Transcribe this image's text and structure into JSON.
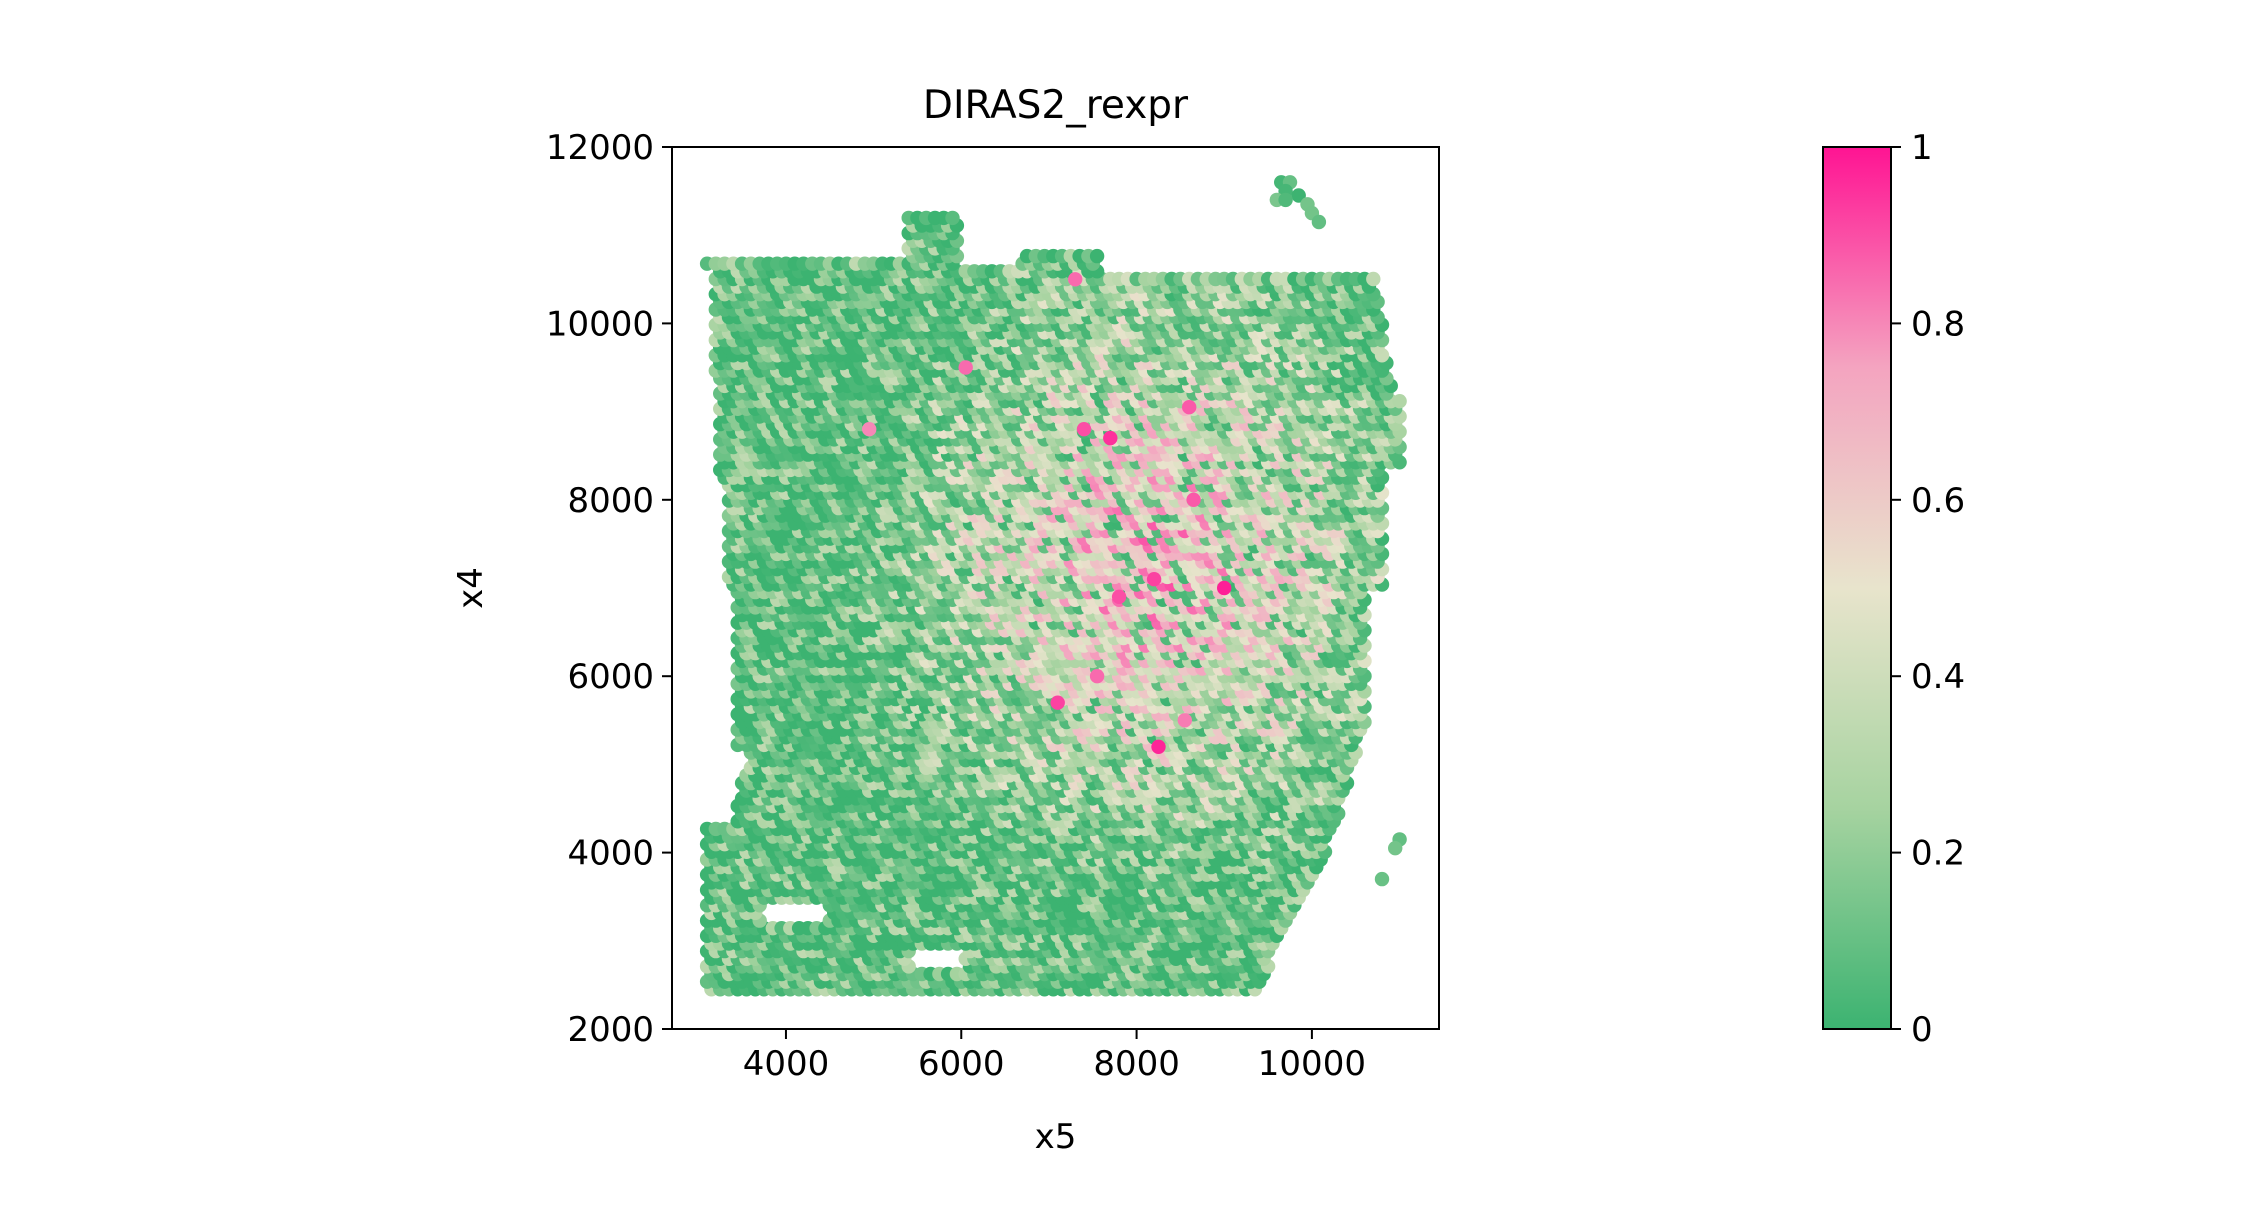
{
  "chart_data": {
    "type": "scatter",
    "title": "DIRAS2_rexpr",
    "xlabel": "x5",
    "ylabel": "x4",
    "xlim": [
      2700,
      11450
    ],
    "ylim": [
      2000,
      12000
    ],
    "xticks": [
      4000,
      6000,
      8000,
      10000
    ],
    "xtick_labels": [
      "4000",
      "6000",
      "8000",
      "10000"
    ],
    "yticks": [
      2000,
      4000,
      6000,
      8000,
      10000,
      12000
    ],
    "ytick_labels": [
      "2000",
      "4000",
      "6000",
      "8000",
      "10000",
      "12000"
    ],
    "grid": false,
    "spot_layout": "hexagonal array of expression spots, approx. 100 units spacing",
    "spot_extent": {
      "x": [
        3050,
        11050
      ],
      "y": [
        2450,
        11600
      ]
    },
    "colorbar": {
      "label": "",
      "range": [
        0,
        1
      ],
      "ticks": [
        0,
        0.2,
        0.4,
        0.6,
        0.8,
        1
      ],
      "tick_labels": [
        "0",
        "0.2",
        "0.4",
        "0.6",
        "0.8",
        "1"
      ],
      "colors": [
        "#3cb371",
        "#a6d3a0",
        "#e8e4cc",
        "#f4a4c0",
        "#ff1493"
      ]
    },
    "value_pattern": "low (green) along left and bottom edges; high (pink) concentrated at x 7000-9200, y 4800-9500",
    "high_value_points": [
      {
        "x": 7700,
        "y": 8700,
        "v": 0.95
      },
      {
        "x": 8200,
        "y": 7100,
        "v": 0.92
      },
      {
        "x": 9000,
        "y": 7000,
        "v": 0.98
      },
      {
        "x": 7800,
        "y": 6900,
        "v": 0.9
      },
      {
        "x": 8250,
        "y": 5200,
        "v": 0.97
      },
      {
        "x": 7100,
        "y": 5700,
        "v": 0.92
      },
      {
        "x": 7400,
        "y": 8800,
        "v": 0.9
      },
      {
        "x": 8600,
        "y": 9050,
        "v": 0.88
      },
      {
        "x": 6050,
        "y": 9500,
        "v": 0.85
      },
      {
        "x": 4950,
        "y": 8800,
        "v": 0.8
      },
      {
        "x": 7300,
        "y": 10500,
        "v": 0.85
      },
      {
        "x": 8650,
        "y": 8000,
        "v": 0.88
      },
      {
        "x": 7550,
        "y": 6000,
        "v": 0.85
      },
      {
        "x": 8550,
        "y": 5500,
        "v": 0.82
      }
    ]
  }
}
